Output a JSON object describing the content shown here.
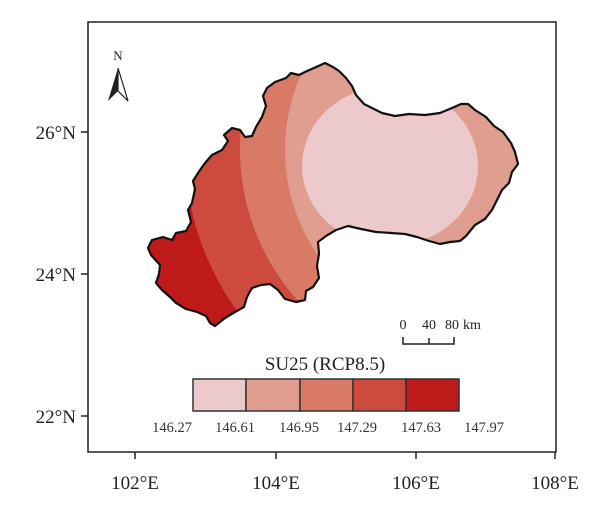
{
  "map": {
    "x_ticks": [
      "102°E",
      "104°E",
      "106°E",
      "108°E"
    ],
    "y_ticks": [
      "26°N",
      "24°N",
      "22°N"
    ],
    "north_label": "N",
    "legend": {
      "title": "SU25 (RCP8.5)",
      "breaks": [
        "146.27",
        "146.61",
        "146.95",
        "147.29",
        "147.63",
        "147.97"
      ],
      "colors": [
        "#eccacb",
        "#df9e90",
        "#d97a66",
        "#cd4a3e",
        "#be1a1a"
      ]
    },
    "scale_bar": {
      "labels": [
        "0",
        "40",
        "80"
      ],
      "unit": "km"
    }
  }
}
